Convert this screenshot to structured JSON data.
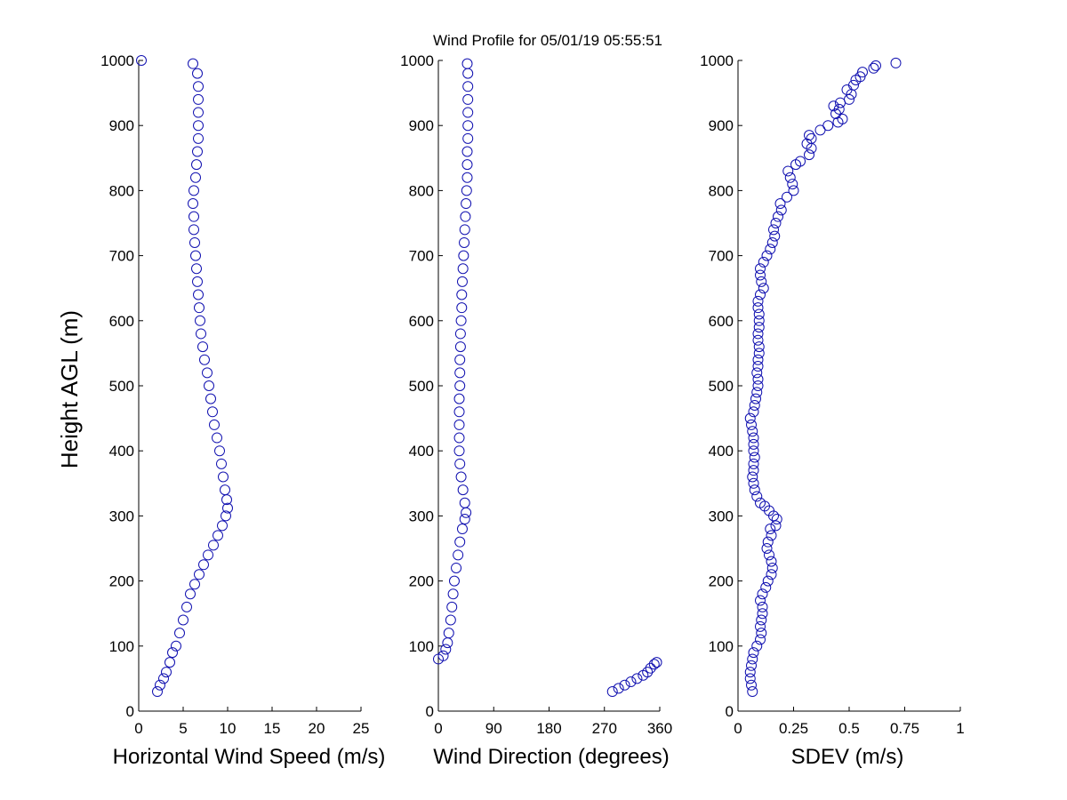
{
  "figure": {
    "title": "Wind Profile for  05/01/19 05:55:51",
    "ylabel": "Height AGL (m)",
    "marker_color": "#1010b0",
    "axis_color": "#000000"
  },
  "chart_data": [
    {
      "type": "scatter",
      "name": "speed",
      "xlabel": "Horizontal Wind Speed (m/s)",
      "xlim": [
        0,
        25
      ],
      "ylim": [
        0,
        1000
      ],
      "xticks": [
        0,
        5,
        10,
        15,
        20,
        25
      ],
      "xtick_labels": [
        "0",
        "5",
        "10",
        "15",
        "20",
        "25"
      ],
      "yticks": [
        0,
        100,
        200,
        300,
        400,
        500,
        600,
        700,
        800,
        900,
        1000
      ],
      "ytick_labels": [
        "0",
        "100",
        "200",
        "300",
        "400",
        "500",
        "600",
        "700",
        "800",
        "900",
        "1000"
      ],
      "points": [
        [
          2.1,
          30
        ],
        [
          2.4,
          40
        ],
        [
          2.8,
          50
        ],
        [
          3.1,
          60
        ],
        [
          3.5,
          75
        ],
        [
          3.8,
          90
        ],
        [
          4.2,
          100
        ],
        [
          4.6,
          120
        ],
        [
          5.0,
          140
        ],
        [
          5.4,
          160
        ],
        [
          5.8,
          180
        ],
        [
          6.3,
          195
        ],
        [
          6.8,
          210
        ],
        [
          7.3,
          225
        ],
        [
          7.8,
          240
        ],
        [
          8.4,
          255
        ],
        [
          8.9,
          270
        ],
        [
          9.4,
          285
        ],
        [
          9.8,
          300
        ],
        [
          10.0,
          312
        ],
        [
          9.9,
          325
        ],
        [
          9.7,
          340
        ],
        [
          9.5,
          360
        ],
        [
          9.3,
          380
        ],
        [
          9.1,
          400
        ],
        [
          8.8,
          420
        ],
        [
          8.5,
          440
        ],
        [
          8.3,
          460
        ],
        [
          8.1,
          480
        ],
        [
          7.9,
          500
        ],
        [
          7.7,
          520
        ],
        [
          7.4,
          540
        ],
        [
          7.2,
          560
        ],
        [
          7.0,
          580
        ],
        [
          6.9,
          600
        ],
        [
          6.8,
          620
        ],
        [
          6.7,
          640
        ],
        [
          6.6,
          660
        ],
        [
          6.5,
          680
        ],
        [
          6.4,
          700
        ],
        [
          6.3,
          720
        ],
        [
          6.2,
          740
        ],
        [
          6.2,
          760
        ],
        [
          6.1,
          780
        ],
        [
          6.2,
          800
        ],
        [
          6.4,
          820
        ],
        [
          6.5,
          840
        ],
        [
          6.6,
          860
        ],
        [
          6.7,
          880
        ],
        [
          6.7,
          900
        ],
        [
          6.7,
          920
        ],
        [
          6.7,
          940
        ],
        [
          6.7,
          960
        ],
        [
          6.6,
          980
        ],
        [
          6.1,
          995
        ],
        [
          0.3,
          1000
        ]
      ]
    },
    {
      "type": "scatter",
      "name": "direction",
      "xlabel": "Wind Direction (degrees)",
      "xlim": [
        0,
        360
      ],
      "ylim": [
        0,
        1000
      ],
      "xticks": [
        0,
        90,
        180,
        270,
        360
      ],
      "xtick_labels": [
        "0",
        "90",
        "180",
        "270",
        "360"
      ],
      "yticks": [
        0,
        100,
        200,
        300,
        400,
        500,
        600,
        700,
        800,
        900,
        1000
      ],
      "ytick_labels": [
        "0",
        "100",
        "200",
        "300",
        "400",
        "500",
        "600",
        "700",
        "800",
        "900",
        "1000"
      ],
      "points": [
        [
          283,
          30
        ],
        [
          293,
          35
        ],
        [
          303,
          40
        ],
        [
          313,
          45
        ],
        [
          323,
          50
        ],
        [
          333,
          55
        ],
        [
          340,
          60
        ],
        [
          345,
          66
        ],
        [
          351,
          72
        ],
        [
          355,
          75
        ],
        [
          0,
          80
        ],
        [
          8,
          85
        ],
        [
          12,
          95
        ],
        [
          15,
          105
        ],
        [
          17,
          120
        ],
        [
          20,
          140
        ],
        [
          22,
          160
        ],
        [
          24,
          180
        ],
        [
          26,
          200
        ],
        [
          29,
          220
        ],
        [
          32,
          240
        ],
        [
          35,
          260
        ],
        [
          39,
          280
        ],
        [
          43,
          295
        ],
        [
          45,
          305
        ],
        [
          43,
          320
        ],
        [
          40,
          340
        ],
        [
          37,
          360
        ],
        [
          35,
          380
        ],
        [
          34,
          400
        ],
        [
          34,
          420
        ],
        [
          34,
          440
        ],
        [
          34,
          460
        ],
        [
          34,
          480
        ],
        [
          35,
          500
        ],
        [
          35,
          520
        ],
        [
          35,
          540
        ],
        [
          36,
          560
        ],
        [
          36,
          580
        ],
        [
          37,
          600
        ],
        [
          38,
          620
        ],
        [
          38,
          640
        ],
        [
          39,
          660
        ],
        [
          40,
          680
        ],
        [
          41,
          700
        ],
        [
          42,
          720
        ],
        [
          43,
          740
        ],
        [
          44,
          760
        ],
        [
          45,
          780
        ],
        [
          46,
          800
        ],
        [
          47,
          820
        ],
        [
          47,
          840
        ],
        [
          47,
          860
        ],
        [
          48,
          880
        ],
        [
          48,
          900
        ],
        [
          48,
          920
        ],
        [
          48,
          940
        ],
        [
          48,
          960
        ],
        [
          48,
          980
        ],
        [
          47,
          995
        ]
      ]
    },
    {
      "type": "scatter",
      "name": "sdev",
      "xlabel": "SDEV  (m/s)",
      "xlim": [
        0,
        1
      ],
      "ylim": [
        0,
        1000
      ],
      "xticks": [
        0,
        0.25,
        0.5,
        0.75,
        1
      ],
      "xtick_labels": [
        "0",
        "0.25",
        "0.5",
        "0.75",
        "1"
      ],
      "yticks": [
        0,
        100,
        200,
        300,
        400,
        500,
        600,
        700,
        800,
        900,
        1000
      ],
      "ytick_labels": [
        "0",
        "100",
        "200",
        "300",
        "400",
        "500",
        "600",
        "700",
        "800",
        "900",
        "1000"
      ],
      "points": [
        [
          0.065,
          30
        ],
        [
          0.06,
          40
        ],
        [
          0.055,
          50
        ],
        [
          0.055,
          60
        ],
        [
          0.06,
          70
        ],
        [
          0.065,
          80
        ],
        [
          0.07,
          90
        ],
        [
          0.085,
          100
        ],
        [
          0.1,
          110
        ],
        [
          0.105,
          120
        ],
        [
          0.1,
          130
        ],
        [
          0.105,
          140
        ],
        [
          0.11,
          150
        ],
        [
          0.11,
          160
        ],
        [
          0.1,
          170
        ],
        [
          0.11,
          180
        ],
        [
          0.125,
          190
        ],
        [
          0.135,
          200
        ],
        [
          0.15,
          210
        ],
        [
          0.155,
          220
        ],
        [
          0.15,
          230
        ],
        [
          0.14,
          240
        ],
        [
          0.13,
          250
        ],
        [
          0.135,
          260
        ],
        [
          0.15,
          270
        ],
        [
          0.145,
          280
        ],
        [
          0.17,
          285
        ],
        [
          0.175,
          295
        ],
        [
          0.16,
          300
        ],
        [
          0.14,
          308
        ],
        [
          0.12,
          315
        ],
        [
          0.1,
          320
        ],
        [
          0.085,
          330
        ],
        [
          0.075,
          340
        ],
        [
          0.07,
          350
        ],
        [
          0.065,
          360
        ],
        [
          0.07,
          370
        ],
        [
          0.07,
          380
        ],
        [
          0.075,
          390
        ],
        [
          0.07,
          400
        ],
        [
          0.07,
          410
        ],
        [
          0.07,
          420
        ],
        [
          0.065,
          430
        ],
        [
          0.06,
          440
        ],
        [
          0.055,
          450
        ],
        [
          0.07,
          460
        ],
        [
          0.075,
          470
        ],
        [
          0.08,
          480
        ],
        [
          0.085,
          490
        ],
        [
          0.09,
          500
        ],
        [
          0.09,
          510
        ],
        [
          0.085,
          520
        ],
        [
          0.09,
          530
        ],
        [
          0.09,
          540
        ],
        [
          0.095,
          550
        ],
        [
          0.095,
          560
        ],
        [
          0.09,
          570
        ],
        [
          0.09,
          580
        ],
        [
          0.095,
          590
        ],
        [
          0.095,
          600
        ],
        [
          0.095,
          610
        ],
        [
          0.09,
          620
        ],
        [
          0.09,
          630
        ],
        [
          0.1,
          640
        ],
        [
          0.115,
          650
        ],
        [
          0.105,
          660
        ],
        [
          0.1,
          670
        ],
        [
          0.1,
          680
        ],
        [
          0.115,
          690
        ],
        [
          0.13,
          700
        ],
        [
          0.145,
          710
        ],
        [
          0.155,
          720
        ],
        [
          0.165,
          730
        ],
        [
          0.16,
          740
        ],
        [
          0.17,
          750
        ],
        [
          0.18,
          760
        ],
        [
          0.195,
          770
        ],
        [
          0.19,
          780
        ],
        [
          0.22,
          790
        ],
        [
          0.25,
          800
        ],
        [
          0.245,
          810
        ],
        [
          0.235,
          820
        ],
        [
          0.225,
          830
        ],
        [
          0.26,
          840
        ],
        [
          0.28,
          845
        ],
        [
          0.32,
          855
        ],
        [
          0.33,
          865
        ],
        [
          0.31,
          872
        ],
        [
          0.33,
          880
        ],
        [
          0.32,
          885
        ],
        [
          0.37,
          893
        ],
        [
          0.405,
          900
        ],
        [
          0.45,
          905
        ],
        [
          0.47,
          910
        ],
        [
          0.44,
          918
        ],
        [
          0.455,
          925
        ],
        [
          0.43,
          930
        ],
        [
          0.46,
          935
        ],
        [
          0.5,
          940
        ],
        [
          0.51,
          948
        ],
        [
          0.49,
          955
        ],
        [
          0.52,
          962
        ],
        [
          0.53,
          970
        ],
        [
          0.55,
          975
        ],
        [
          0.56,
          982
        ],
        [
          0.61,
          988
        ],
        [
          0.62,
          992
        ],
        [
          0.71,
          996
        ]
      ]
    }
  ]
}
